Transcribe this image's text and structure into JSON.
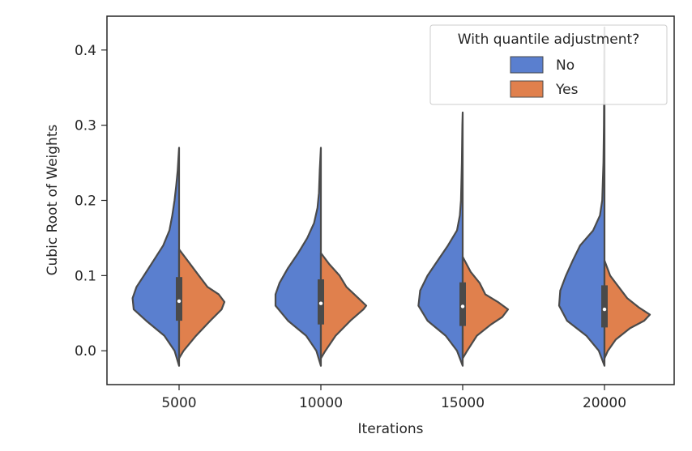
{
  "chart_data": {
    "type": "violin",
    "split": true,
    "xlabel": "Iterations",
    "ylabel": "Cubic Root of Weights",
    "categories": [
      "5000",
      "10000",
      "15000",
      "20000"
    ],
    "ylim": [
      -0.045,
      0.445
    ],
    "yticks": [
      "0.0",
      "0.1",
      "0.2",
      "0.3",
      "0.4"
    ],
    "legend": {
      "title": "With quantile adjustment?",
      "location": "upper right",
      "entries": [
        "No",
        "Yes"
      ]
    },
    "series": [
      {
        "name": "No",
        "color": "#5a7fcf",
        "violins": [
          {
            "min": -0.02,
            "max": 0.27,
            "density": [
              [
                -0.02,
                0.0
              ],
              [
                0.0,
                0.08
              ],
              [
                0.02,
                0.26
              ],
              [
                0.04,
                0.58
              ],
              [
                0.055,
                0.8
              ],
              [
                0.07,
                0.82
              ],
              [
                0.085,
                0.75
              ],
              [
                0.1,
                0.62
              ],
              [
                0.12,
                0.45
              ],
              [
                0.14,
                0.28
              ],
              [
                0.16,
                0.17
              ],
              [
                0.18,
                0.12
              ],
              [
                0.2,
                0.08
              ],
              [
                0.22,
                0.05
              ],
              [
                0.24,
                0.025
              ],
              [
                0.27,
                0.0
              ]
            ]
          },
          {
            "min": -0.02,
            "max": 0.27,
            "density": [
              [
                -0.02,
                0.0
              ],
              [
                0.0,
                0.08
              ],
              [
                0.02,
                0.26
              ],
              [
                0.04,
                0.58
              ],
              [
                0.06,
                0.8
              ],
              [
                0.075,
                0.8
              ],
              [
                0.09,
                0.73
              ],
              [
                0.11,
                0.58
              ],
              [
                0.13,
                0.4
              ],
              [
                0.15,
                0.24
              ],
              [
                0.17,
                0.12
              ],
              [
                0.19,
                0.06
              ],
              [
                0.21,
                0.035
              ],
              [
                0.24,
                0.02
              ],
              [
                0.27,
                0.0
              ]
            ]
          },
          {
            "min": -0.02,
            "max": 0.317,
            "density": [
              [
                -0.02,
                0.0
              ],
              [
                0.0,
                0.1
              ],
              [
                0.02,
                0.3
              ],
              [
                0.04,
                0.62
              ],
              [
                0.06,
                0.78
              ],
              [
                0.08,
                0.75
              ],
              [
                0.1,
                0.62
              ],
              [
                0.12,
                0.44
              ],
              [
                0.14,
                0.26
              ],
              [
                0.16,
                0.1
              ],
              [
                0.18,
                0.05
              ],
              [
                0.2,
                0.03
              ],
              [
                0.25,
                0.015
              ],
              [
                0.3,
                0.005
              ],
              [
                0.317,
                0.0
              ]
            ]
          },
          {
            "min": -0.02,
            "max": 0.43,
            "density": [
              [
                -0.02,
                0.0
              ],
              [
                0.0,
                0.1
              ],
              [
                0.02,
                0.32
              ],
              [
                0.04,
                0.66
              ],
              [
                0.06,
                0.8
              ],
              [
                0.08,
                0.78
              ],
              [
                0.1,
                0.68
              ],
              [
                0.12,
                0.56
              ],
              [
                0.14,
                0.43
              ],
              [
                0.16,
                0.2
              ],
              [
                0.18,
                0.08
              ],
              [
                0.2,
                0.04
              ],
              [
                0.25,
                0.018
              ],
              [
                0.3,
                0.01
              ],
              [
                0.35,
                0.006
              ],
              [
                0.4,
                0.003
              ],
              [
                0.43,
                0.0
              ]
            ]
          }
        ]
      },
      {
        "name": "Yes",
        "color": "#e0804d",
        "violins": [
          {
            "min": -0.01,
            "max": 0.135,
            "density": [
              [
                -0.01,
                0.0
              ],
              [
                0.0,
                0.08
              ],
              [
                0.02,
                0.3
              ],
              [
                0.04,
                0.55
              ],
              [
                0.055,
                0.75
              ],
              [
                0.065,
                0.8
              ],
              [
                0.075,
                0.7
              ],
              [
                0.085,
                0.5
              ],
              [
                0.1,
                0.35
              ],
              [
                0.12,
                0.15
              ],
              [
                0.135,
                0.0
              ]
            ]
          },
          {
            "min": -0.01,
            "max": 0.13,
            "density": [
              [
                -0.01,
                0.0
              ],
              [
                0.0,
                0.08
              ],
              [
                0.02,
                0.26
              ],
              [
                0.04,
                0.52
              ],
              [
                0.055,
                0.75
              ],
              [
                0.06,
                0.8
              ],
              [
                0.07,
                0.66
              ],
              [
                0.085,
                0.45
              ],
              [
                0.1,
                0.33
              ],
              [
                0.115,
                0.15
              ],
              [
                0.13,
                0.0
              ]
            ]
          },
          {
            "min": -0.01,
            "max": 0.125,
            "density": [
              [
                -0.01,
                0.0
              ],
              [
                0.0,
                0.08
              ],
              [
                0.02,
                0.25
              ],
              [
                0.035,
                0.5
              ],
              [
                0.045,
                0.7
              ],
              [
                0.055,
                0.8
              ],
              [
                0.065,
                0.62
              ],
              [
                0.075,
                0.4
              ],
              [
                0.09,
                0.3
              ],
              [
                0.105,
                0.14
              ],
              [
                0.125,
                0.0
              ]
            ]
          },
          {
            "min": -0.01,
            "max": 0.12,
            "density": [
              [
                -0.01,
                0.0
              ],
              [
                0.0,
                0.06
              ],
              [
                0.015,
                0.2
              ],
              [
                0.03,
                0.45
              ],
              [
                0.04,
                0.7
              ],
              [
                0.048,
                0.8
              ],
              [
                0.058,
                0.6
              ],
              [
                0.07,
                0.4
              ],
              [
                0.085,
                0.25
              ],
              [
                0.1,
                0.1
              ],
              [
                0.12,
                0.0
              ]
            ]
          }
        ]
      }
    ],
    "boxes": [
      {
        "q1": 0.04,
        "median": 0.066,
        "q3": 0.098
      },
      {
        "q1": 0.035,
        "median": 0.063,
        "q3": 0.095
      },
      {
        "q1": 0.033,
        "median": 0.059,
        "q3": 0.091
      },
      {
        "q1": 0.031,
        "median": 0.055,
        "q3": 0.087
      }
    ]
  }
}
